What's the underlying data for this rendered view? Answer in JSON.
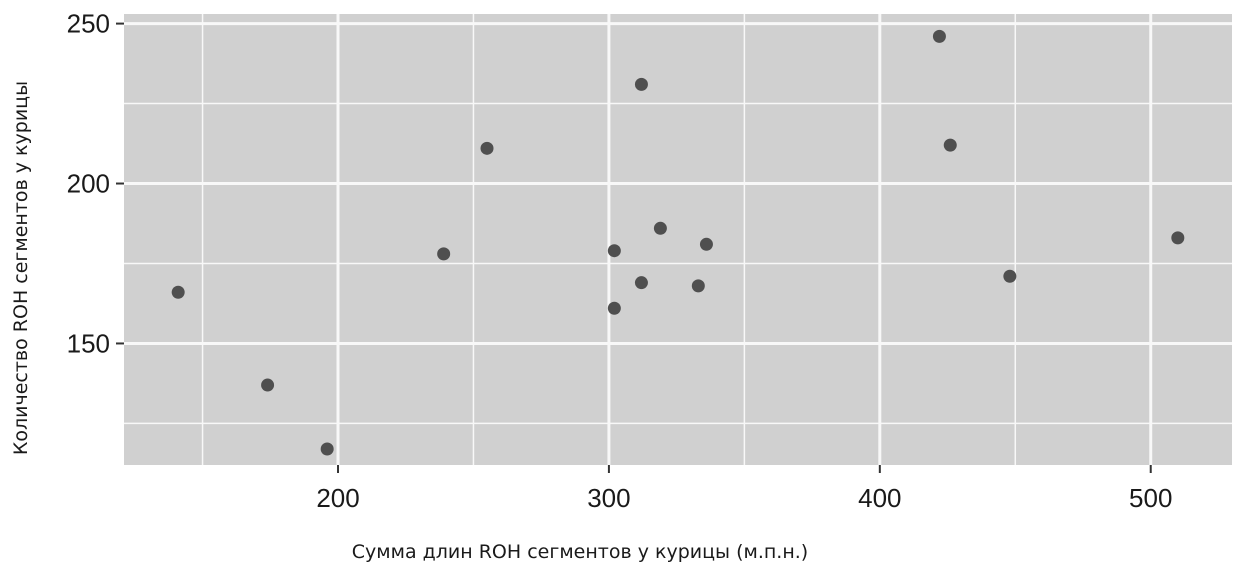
{
  "chart_data": {
    "type": "scatter",
    "title": "",
    "xlabel": "Сумма длин ROH сегментов у курицы (м.п.н.)",
    "ylabel": "Количество ROH сегментов у курицы",
    "xlim": [
      121,
      530
    ],
    "ylim": [
      112,
      253
    ],
    "x_major_ticks": [
      200,
      300,
      400,
      500
    ],
    "x_minor_ticks": [
      150,
      250,
      350,
      450
    ],
    "y_major_ticks": [
      150,
      200,
      250
    ],
    "y_minor_ticks": [
      125,
      175,
      225
    ],
    "tick_labels_x": [
      "200",
      "300",
      "400",
      "500"
    ],
    "tick_labels_y": [
      "150",
      "200",
      "250"
    ],
    "grid": true,
    "panel_color": "#d0d0d0",
    "grid_color": "#f8f8f8",
    "point_color": "#4f4f4f",
    "points": [
      {
        "x": 141,
        "y": 166
      },
      {
        "x": 174,
        "y": 137
      },
      {
        "x": 196,
        "y": 117
      },
      {
        "x": 239,
        "y": 178
      },
      {
        "x": 255,
        "y": 211
      },
      {
        "x": 302,
        "y": 179
      },
      {
        "x": 302,
        "y": 161
      },
      {
        "x": 312,
        "y": 231
      },
      {
        "x": 312,
        "y": 169
      },
      {
        "x": 319,
        "y": 186
      },
      {
        "x": 333,
        "y": 168
      },
      {
        "x": 336,
        "y": 181
      },
      {
        "x": 422,
        "y": 246
      },
      {
        "x": 426,
        "y": 212
      },
      {
        "x": 448,
        "y": 171
      },
      {
        "x": 510,
        "y": 183
      }
    ]
  }
}
